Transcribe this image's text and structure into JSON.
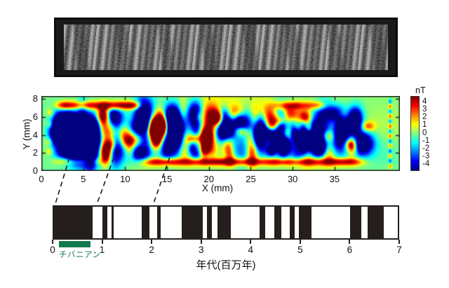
{
  "colors": {
    "polarity_black": "#241f1c",
    "chibanian_green": "#13794e",
    "axis_text": "#111111",
    "connector_line": "#1a1a1a"
  },
  "chart_data": [
    {
      "type": "heatmap",
      "title": "",
      "xlabel": "X (mm)",
      "ylabel": "Y (mm)",
      "x_ticks": [
        0,
        5,
        10,
        15,
        20,
        25,
        30,
        35
      ],
      "y_ticks": [
        0,
        2,
        4,
        6,
        8
      ],
      "xlim": [
        0,
        42.8
      ],
      "ylim": [
        0,
        8.32
      ],
      "colormap": "jet",
      "grid": false,
      "colorbar": {
        "label": "nT",
        "ticks": [
          4,
          3,
          2,
          1,
          0,
          -1,
          -2,
          -3,
          -4
        ],
        "clim": [
          -4.8,
          4.8
        ],
        "position": "right"
      },
      "stripes": [
        {
          "x0": 1.5,
          "x1": 6.8,
          "sign": -1,
          "strength": 1.0
        },
        {
          "x0": 6.8,
          "x1": 8.4,
          "sign": 1,
          "strength": 1.0
        },
        {
          "x0": 8.4,
          "x1": 9.6,
          "sign": -1,
          "strength": 0.85
        },
        {
          "x0": 9.6,
          "x1": 10.8,
          "sign": 1,
          "strength": 0.7
        },
        {
          "x0": 10.8,
          "x1": 12.7,
          "sign": -1,
          "strength": 0.9
        },
        {
          "x0": 12.7,
          "x1": 14.7,
          "sign": 1,
          "strength": 1.0
        },
        {
          "x0": 14.7,
          "x1": 16.5,
          "sign": -1,
          "strength": 0.9
        },
        {
          "x0": 16.5,
          "x1": 17.6,
          "sign": 1,
          "strength": 0.55
        },
        {
          "x0": 17.6,
          "x1": 19.3,
          "sign": -1,
          "strength": 0.85
        },
        {
          "x0": 19.3,
          "x1": 21.2,
          "sign": 1,
          "strength": 0.85
        },
        {
          "x0": 21.2,
          "x1": 22.3,
          "sign": -1,
          "strength": 0.85
        },
        {
          "x0": 22.3,
          "x1": 23.5,
          "sign": 1,
          "strength": 0.8
        },
        {
          "x0": 23.5,
          "x1": 24.5,
          "sign": -1,
          "strength": 0.85
        },
        {
          "x0": 24.5,
          "x1": 25.6,
          "sign": 1,
          "strength": 0.8
        },
        {
          "x0": 25.6,
          "x1": 26.8,
          "sign": -1,
          "strength": 0.9
        },
        {
          "x0": 26.8,
          "x1": 27.8,
          "sign": 1,
          "strength": 0.8
        },
        {
          "x0": 27.8,
          "x1": 29.0,
          "sign": -1,
          "strength": 0.85
        },
        {
          "x0": 29.0,
          "x1": 30.1,
          "sign": 1,
          "strength": 0.8
        },
        {
          "x0": 30.1,
          "x1": 31.5,
          "sign": -1,
          "strength": 0.9
        },
        {
          "x0": 31.5,
          "x1": 32.5,
          "sign": 1,
          "strength": 0.75
        },
        {
          "x0": 32.5,
          "x1": 33.9,
          "sign": -1,
          "strength": 0.9
        },
        {
          "x0": 33.9,
          "x1": 34.9,
          "sign": 1,
          "strength": 0.75
        },
        {
          "x0": 34.9,
          "x1": 36.3,
          "sign": -1,
          "strength": 0.85
        },
        {
          "x0": 36.3,
          "x1": 37.3,
          "sign": 1,
          "strength": 0.7
        },
        {
          "x0": 37.3,
          "x1": 38.5,
          "sign": -1,
          "strength": 0.8
        }
      ],
      "features": {
        "top_ridge_x": [
          [
            2,
            12
          ],
          [
            28,
            33.5
          ]
        ],
        "bottom_band_x": [
          12.5,
          38.5
        ],
        "blob_band_y": [
          1.6,
          7.0
        ],
        "left_edge_dots": [
          [
            0.9,
            2.2
          ],
          [
            0.85,
            3.3
          ],
          [
            0.95,
            5.2
          ],
          [
            1.0,
            6.5
          ]
        ],
        "right_edge_dot_column_x": 41.6,
        "data_end_x": 38.5
      }
    },
    {
      "type": "bar",
      "name": "geomagnetic-polarity-timescale",
      "xlabel": "年代(百万年)",
      "x_ticks": [
        0,
        1,
        2,
        3,
        4,
        5,
        6,
        7
      ],
      "xlim": [
        0,
        7
      ],
      "bar_color": "#241f1c",
      "normal_intervals_ma": [
        [
          0,
          0.78
        ],
        [
          0.99,
          1.08
        ],
        [
          1.17,
          1.22
        ],
        [
          1.78,
          1.95
        ],
        [
          2.1,
          2.17
        ],
        [
          2.6,
          3.03
        ],
        [
          3.11,
          3.22
        ],
        [
          3.33,
          3.6
        ],
        [
          4.19,
          4.3
        ],
        [
          4.49,
          4.63
        ],
        [
          4.8,
          4.9
        ],
        [
          4.99,
          5.24
        ],
        [
          6.03,
          6.26
        ],
        [
          6.39,
          6.71
        ]
      ],
      "highlight": {
        "label": "チバニアン",
        "interval_ma": [
          0.13,
          0.77
        ],
        "color": "#13794e"
      }
    }
  ],
  "connectors": [
    {
      "sample_x_mm": 3.35,
      "age_ma": 0.05
    },
    {
      "sample_x_mm": 8.65,
      "age_ma": 0.89
    },
    {
      "sample_x_mm": 15.3,
      "age_ma": 2.03
    }
  ]
}
